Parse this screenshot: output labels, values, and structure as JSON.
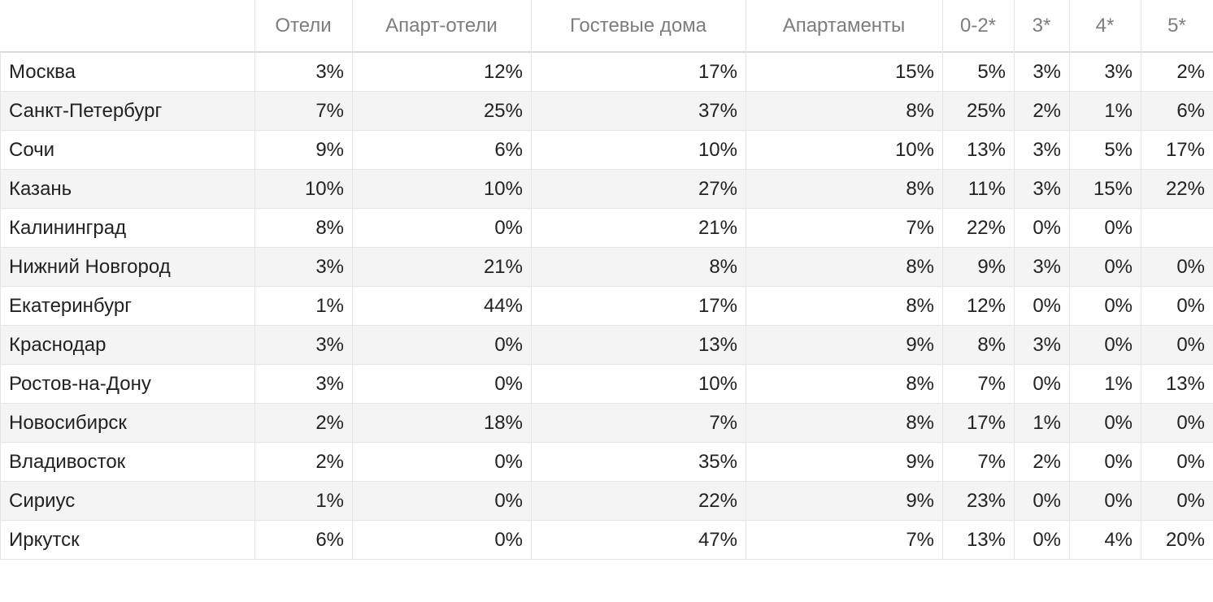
{
  "chart_data": {
    "type": "table",
    "columns": [
      "Отели",
      "Апарт-отели",
      "Гостевые дома",
      "Апартаменты",
      "0-2*",
      "3*",
      "4*",
      "5*"
    ],
    "rows": [
      {
        "city": "Москва",
        "values": [
          "3%",
          "12%",
          "17%",
          "15%",
          "5%",
          "3%",
          "3%",
          "2%"
        ]
      },
      {
        "city": "Санкт-Петербург",
        "values": [
          "7%",
          "25%",
          "37%",
          "8%",
          "25%",
          "2%",
          "1%",
          "6%"
        ]
      },
      {
        "city": "Сочи",
        "values": [
          "9%",
          "6%",
          "10%",
          "10%",
          "13%",
          "3%",
          "5%",
          "17%"
        ]
      },
      {
        "city": "Казань",
        "values": [
          "10%",
          "10%",
          "27%",
          "8%",
          "11%",
          "3%",
          "15%",
          "22%"
        ]
      },
      {
        "city": "Калининград",
        "values": [
          "8%",
          "0%",
          "21%",
          "7%",
          "22%",
          "0%",
          "0%",
          ""
        ]
      },
      {
        "city": "Нижний Новгород",
        "values": [
          "3%",
          "21%",
          "8%",
          "8%",
          "9%",
          "3%",
          "0%",
          "0%"
        ]
      },
      {
        "city": "Екатеринбург",
        "values": [
          "1%",
          "44%",
          "17%",
          "8%",
          "12%",
          "0%",
          "0%",
          "0%"
        ]
      },
      {
        "city": "Краснодар",
        "values": [
          "3%",
          "0%",
          "13%",
          "9%",
          "8%",
          "3%",
          "0%",
          "0%"
        ]
      },
      {
        "city": "Ростов-на-Дону",
        "values": [
          "3%",
          "0%",
          "10%",
          "8%",
          "7%",
          "0%",
          "1%",
          "13%"
        ]
      },
      {
        "city": "Новосибирск",
        "values": [
          "2%",
          "18%",
          "7%",
          "8%",
          "17%",
          "1%",
          "0%",
          "0%"
        ]
      },
      {
        "city": "Владивосток",
        "values": [
          "2%",
          "0%",
          "35%",
          "9%",
          "7%",
          "2%",
          "0%",
          "0%"
        ]
      },
      {
        "city": "Сириус",
        "values": [
          "1%",
          "0%",
          "22%",
          "9%",
          "23%",
          "0%",
          "0%",
          "0%"
        ]
      },
      {
        "city": "Иркутск",
        "values": [
          "6%",
          "0%",
          "47%",
          "7%",
          "13%",
          "0%",
          "4%",
          "20%"
        ]
      }
    ],
    "colors": {
      "header_text": "#7d7d7d",
      "body_text": "#222222",
      "stripe": "#f4f4f4",
      "grid": "#e4e4e4"
    }
  }
}
